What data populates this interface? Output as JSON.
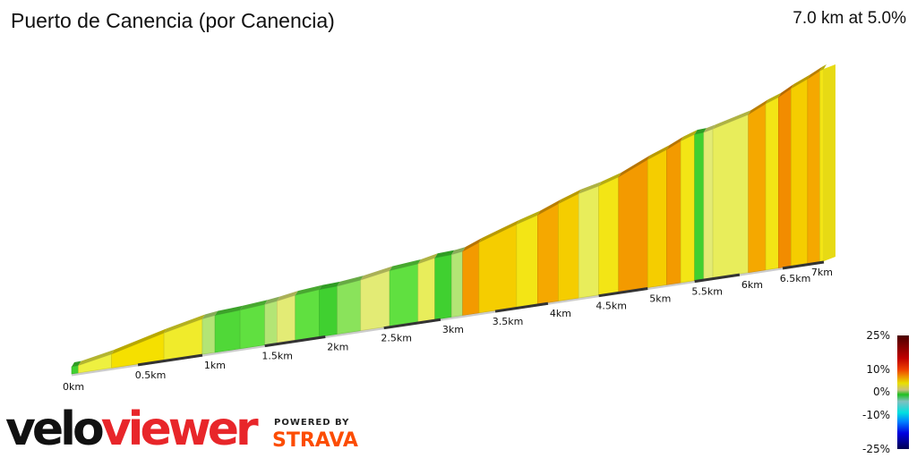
{
  "header": {
    "title": "Puerto de Canencia (por Canencia)",
    "summary": "7.0 km at 5.0%"
  },
  "chart_data": {
    "type": "area",
    "title": "Puerto de Canencia (por Canencia)",
    "total_distance_km": 7.0,
    "average_gradient_pct": 5.0,
    "x_ticks": [
      "0km",
      "0.5km",
      "1km",
      "1.5km",
      "2km",
      "2.5km",
      "3km",
      "3.5km",
      "4km",
      "4.5km",
      "5km",
      "5.5km",
      "6km",
      "6.5km",
      "7km"
    ],
    "segments_km_start": [
      0,
      0.05,
      0.3,
      0.7,
      1.0,
      1.1,
      1.3,
      1.5,
      1.6,
      1.75,
      1.95,
      2.1,
      2.3,
      2.55,
      2.8,
      2.95,
      3.1,
      3.2,
      3.35,
      3.7,
      3.9,
      4.1,
      4.3,
      4.5,
      4.7,
      5.0,
      5.2,
      5.35,
      5.5,
      5.6,
      5.7,
      6.1,
      6.3,
      6.45,
      6.6,
      6.8,
      6.95
    ],
    "segments_km_end": [
      0.05,
      0.3,
      0.7,
      1.0,
      1.1,
      1.3,
      1.5,
      1.6,
      1.75,
      1.95,
      2.1,
      2.3,
      2.55,
      2.8,
      2.95,
      3.1,
      3.2,
      3.35,
      3.7,
      3.9,
      4.1,
      4.3,
      4.5,
      4.7,
      5.0,
      5.2,
      5.35,
      5.5,
      5.6,
      5.7,
      6.1,
      6.3,
      6.45,
      6.6,
      6.8,
      6.95,
      7.0
    ],
    "segments_gradient_pct": [
      1,
      5,
      6.5,
      5.5,
      3,
      1.5,
      2,
      3,
      4,
      2,
      1,
      2.5,
      4,
      2,
      4.5,
      1,
      3,
      8.5,
      7,
      6,
      8,
      7,
      4.5,
      6,
      8.5,
      7,
      8.5,
      6,
      1,
      4,
      4.5,
      8,
      6,
      9,
      7,
      8,
      6
    ],
    "color_scale": {
      "labels": [
        "25%",
        "10%",
        "0%",
        "-10%",
        "-25%"
      ],
      "stops": [
        [
          -25,
          "#000060"
        ],
        [
          -15,
          "#0000ff"
        ],
        [
          -10,
          "#00e0e0"
        ],
        [
          -3,
          "#80c0c0"
        ],
        [
          0,
          "#20c020"
        ],
        [
          2,
          "#60e040"
        ],
        [
          3.5,
          "#dde890"
        ],
        [
          5,
          "#eef040"
        ],
        [
          6.5,
          "#f5e000"
        ],
        [
          8,
          "#f5a800"
        ],
        [
          10,
          "#ee7000"
        ],
        [
          15,
          "#dd0000"
        ],
        [
          25,
          "#500000"
        ]
      ]
    }
  },
  "branding": {
    "logo_part1": "velo",
    "logo_part2": "viewer",
    "powered_by": "POWERED BY",
    "strava": "STRAVA"
  }
}
